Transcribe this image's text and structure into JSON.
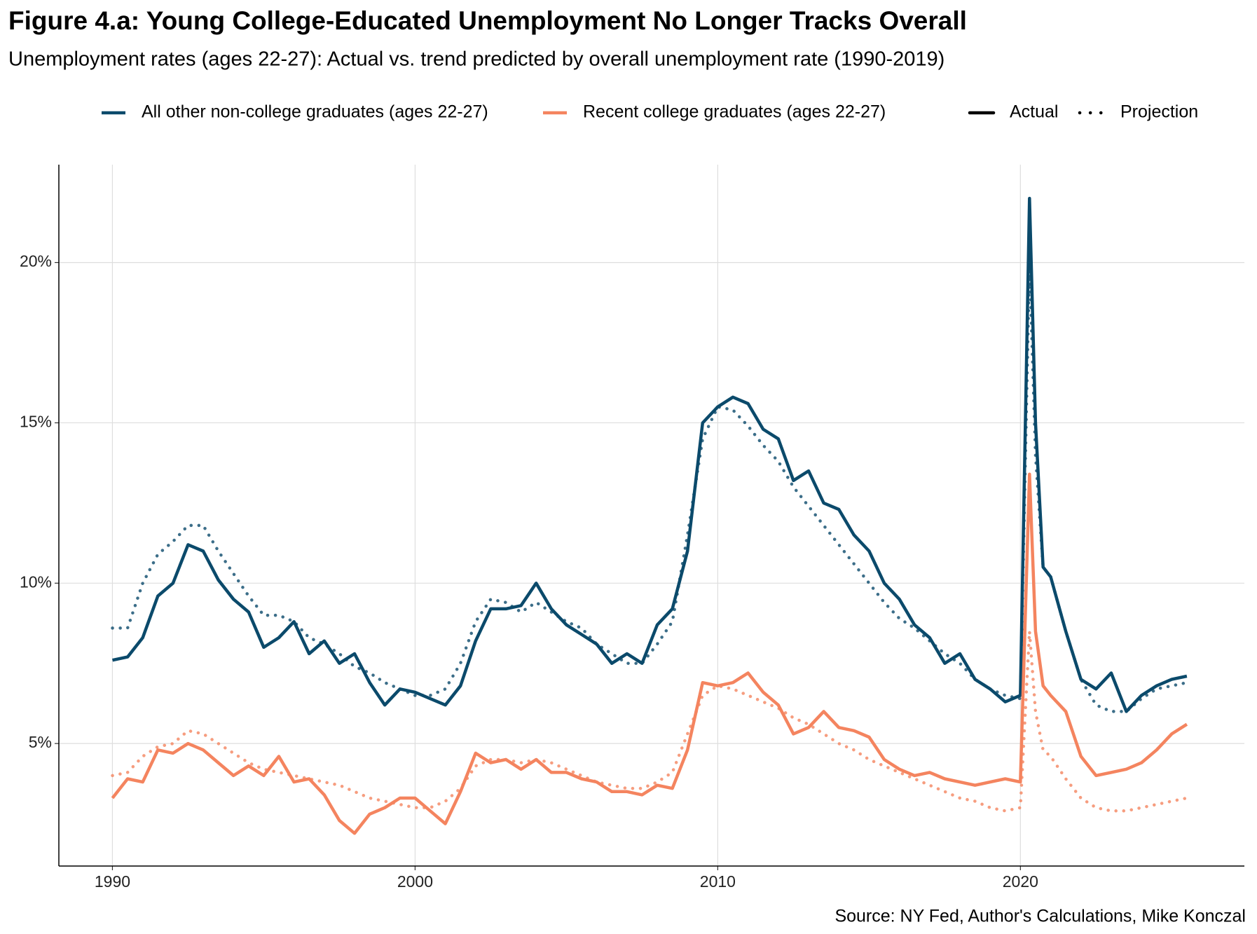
{
  "chart_data": {
    "type": "line",
    "title": "Figure 4.a: Young College-Educated Unemployment No Longer Tracks Overall",
    "subtitle": "Unemployment rates (ages 22-27): Actual vs. trend predicted by overall unemployment rate (1990-2019)",
    "source": "Source: NY Fed, Author's Calculations, Mike Konczal",
    "x": [
      1990,
      1990.5,
      1991,
      1991.5,
      1992,
      1992.5,
      1993,
      1993.5,
      1994,
      1994.5,
      1995,
      1995.5,
      1996,
      1996.5,
      1997,
      1997.5,
      1998,
      1998.5,
      1999,
      1999.5,
      2000,
      2000.5,
      2001,
      2001.5,
      2002,
      2002.5,
      2003,
      2003.5,
      2004,
      2004.5,
      2005,
      2005.5,
      2006,
      2006.5,
      2007,
      2007.5,
      2008,
      2008.5,
      2009,
      2009.5,
      2010,
      2010.5,
      2011,
      2011.5,
      2012,
      2012.5,
      2013,
      2013.5,
      2014,
      2014.5,
      2015,
      2015.5,
      2016,
      2016.5,
      2017,
      2017.5,
      2018,
      2018.5,
      2019,
      2019.5,
      2020,
      2020.3,
      2020.5,
      2020.75,
      2021,
      2021.5,
      2022,
      2022.5,
      2023,
      2023.5,
      2024,
      2024.5,
      2025,
      2025.5
    ],
    "series": [
      {
        "name": "All other non-college graduates (ages 22-27)",
        "color": "#0b4a6b",
        "values": [
          7.6,
          7.7,
          8.3,
          9.6,
          10.0,
          11.2,
          11.0,
          10.1,
          9.5,
          9.1,
          8.0,
          8.3,
          8.8,
          7.8,
          8.2,
          7.5,
          7.8,
          6.9,
          6.2,
          6.7,
          6.6,
          6.4,
          6.2,
          6.8,
          8.2,
          9.2,
          9.2,
          9.3,
          10.0,
          9.2,
          8.7,
          8.4,
          8.1,
          7.5,
          7.8,
          7.5,
          8.7,
          9.2,
          11.0,
          15.0,
          15.5,
          15.8,
          15.6,
          14.8,
          14.5,
          13.2,
          13.5,
          12.5,
          12.3,
          11.5,
          11.0,
          10.0,
          9.5,
          8.7,
          8.3,
          7.5,
          7.8,
          7.0,
          6.7,
          6.3,
          6.5,
          22.0,
          15.0,
          10.5,
          10.2,
          8.5,
          7.0,
          6.7,
          7.2,
          6.0,
          6.5,
          6.8,
          7.0,
          7.1
        ],
        "projection": [
          8.6,
          8.6,
          10.0,
          10.9,
          11.3,
          11.8,
          11.8,
          11.0,
          10.3,
          9.6,
          9.0,
          9.0,
          8.8,
          8.3,
          8.1,
          7.8,
          7.4,
          7.2,
          6.9,
          6.7,
          6.5,
          6.5,
          6.7,
          7.5,
          8.8,
          9.5,
          9.4,
          9.1,
          9.4,
          9.1,
          8.8,
          8.6,
          8.1,
          7.8,
          7.5,
          7.5,
          8.1,
          8.8,
          11.5,
          14.5,
          15.5,
          15.4,
          14.9,
          14.3,
          13.8,
          13.0,
          12.4,
          11.8,
          11.2,
          10.6,
          10.0,
          9.4,
          8.9,
          8.6,
          8.2,
          7.8,
          7.5,
          7.0,
          6.7,
          6.5,
          6.4,
          20.0,
          14.0,
          10.5,
          10.2,
          8.5,
          7.0,
          6.2,
          6.0,
          6.0,
          6.4,
          6.7,
          6.8,
          6.9
        ]
      },
      {
        "name": "Recent college graduates (ages 22-27)",
        "color": "#f4845f",
        "values": [
          3.3,
          3.9,
          3.8,
          4.8,
          4.7,
          5.0,
          4.8,
          4.4,
          4.0,
          4.3,
          4.0,
          4.6,
          3.8,
          3.9,
          3.4,
          2.6,
          2.2,
          2.8,
          3.0,
          3.3,
          3.3,
          2.9,
          2.5,
          3.5,
          4.7,
          4.4,
          4.5,
          4.2,
          4.5,
          4.1,
          4.1,
          3.9,
          3.8,
          3.5,
          3.5,
          3.4,
          3.7,
          3.6,
          4.8,
          6.9,
          6.8,
          6.9,
          7.2,
          6.6,
          6.2,
          5.3,
          5.5,
          6.0,
          5.5,
          5.4,
          5.2,
          4.5,
          4.2,
          4.0,
          4.1,
          3.9,
          3.8,
          3.7,
          3.8,
          3.9,
          3.8,
          13.4,
          8.5,
          6.8,
          6.5,
          6.0,
          4.6,
          4.0,
          4.1,
          4.2,
          4.4,
          4.8,
          5.3,
          5.6
        ],
        "projection": [
          4.0,
          4.1,
          4.6,
          4.9,
          5.0,
          5.4,
          5.3,
          5.0,
          4.7,
          4.4,
          4.2,
          4.1,
          4.0,
          3.9,
          3.8,
          3.7,
          3.5,
          3.3,
          3.2,
          3.1,
          3.0,
          3.0,
          3.2,
          3.6,
          4.3,
          4.5,
          4.5,
          4.4,
          4.5,
          4.4,
          4.2,
          4.0,
          3.8,
          3.7,
          3.6,
          3.6,
          3.8,
          4.1,
          5.3,
          6.5,
          6.8,
          6.7,
          6.5,
          6.3,
          6.1,
          5.8,
          5.6,
          5.3,
          5.0,
          4.8,
          4.5,
          4.3,
          4.1,
          3.9,
          3.7,
          3.5,
          3.3,
          3.2,
          3.0,
          2.9,
          3.0,
          8.5,
          6.0,
          4.8,
          4.6,
          3.9,
          3.3,
          3.0,
          2.9,
          2.9,
          3.0,
          3.1,
          3.2,
          3.3
        ]
      }
    ],
    "legend_linetypes": [
      {
        "label": "Actual",
        "dash": "solid"
      },
      {
        "label": "Projection",
        "dash": "dotted"
      }
    ],
    "xlim": [
      1988.23,
      2027.4
    ],
    "xticks": [
      1990,
      2000,
      2010,
      2020
    ],
    "ylim": [
      1.18,
      23.05
    ],
    "yticks": [
      {
        "value": 5,
        "label": "5%"
      },
      {
        "value": 10,
        "label": "10%"
      },
      {
        "value": 15,
        "label": "15%"
      },
      {
        "value": 20,
        "label": "20%"
      }
    ],
    "grid": true
  }
}
